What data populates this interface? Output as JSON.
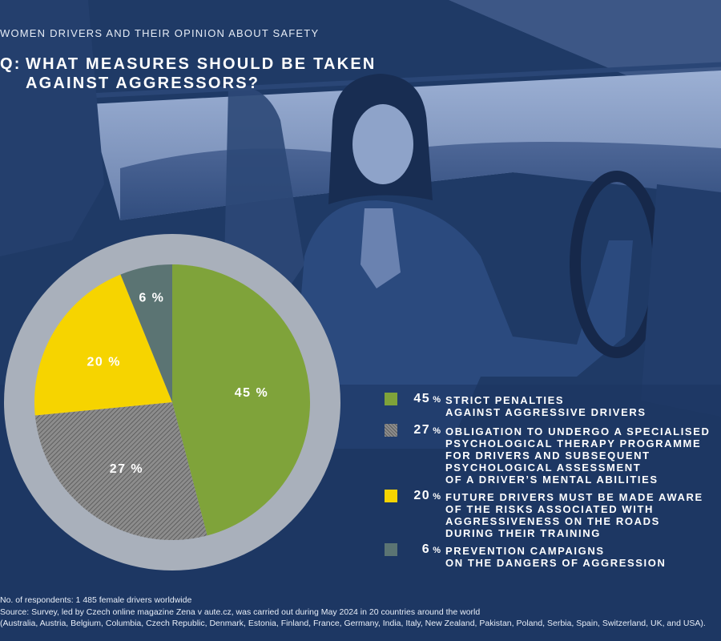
{
  "header": {
    "subtitle": "WOMEN DRIVERS AND THEIR OPINION ABOUT SAFETY",
    "q_label": "Q:",
    "title_line1": "WHAT MEASURES SHOULD BE TAKEN",
    "title_line2": "AGAINST AGGRESSORS?"
  },
  "colors": {
    "background": "#1f3a66",
    "pie_ring": "#a9b0bb",
    "green": "#7fa33a",
    "gray_hatched": "#8c8c8c",
    "yellow": "#f6d400",
    "slate": "#5b7473",
    "text": "#ffffff"
  },
  "chart_data": {
    "type": "pie",
    "slices": [
      {
        "value": 45,
        "label": "45 %",
        "color": "#7fa33a",
        "pattern": "solid",
        "legend_pct": "45",
        "legend_text": "STRICT PENALTIES\nAGAINST AGGRESSIVE DRIVERS"
      },
      {
        "value": 27,
        "label": "27 %",
        "color": "#8c8c8c",
        "pattern": "hatched",
        "legend_pct": "27",
        "legend_text": "OBLIGATION TO UNDERGO A SPECIALISED\nPSYCHOLOGICAL THERAPY PROGRAMME\nFOR DRIVERS AND SUBSEQUENT\nPSYCHOLOGICAL ASSESSMENT\nOF A DRIVER’S MENTAL ABILITIES"
      },
      {
        "value": 20,
        "label": "20 %",
        "color": "#f6d400",
        "pattern": "solid",
        "legend_pct": "20",
        "legend_text": "FUTURE DRIVERS MUST BE MADE AWARE\nOF THE RISKS ASSOCIATED WITH\nAGGRESSIVENESS ON THE ROADS\nDURING THEIR TRAINING"
      },
      {
        "value": 6,
        "label": "6 %",
        "color": "#5b7473",
        "pattern": "solid",
        "legend_pct": "6",
        "legend_text": "PREVENTION CAMPAIGNS\nON THE DANGERS OF AGGRESSION"
      }
    ],
    "unit": "%",
    "start": "12 o'clock",
    "direction": "clockwise"
  },
  "footnotes": [
    "No. of respondents: 1 485 female drivers worldwide",
    "Source: Survey, led by Czech online magazine Zena v aute.cz, was carried out during May 2024 in 20 countries around the world",
    "(Australia, Austria, Belgium, Columbia, Czech Republic, Denmark, Estonia, Finland, France, Germany, India, Italy, New Zealand, Pakistan, Poland, Serbia, Spain, Switzerland, UK, and USA)."
  ]
}
